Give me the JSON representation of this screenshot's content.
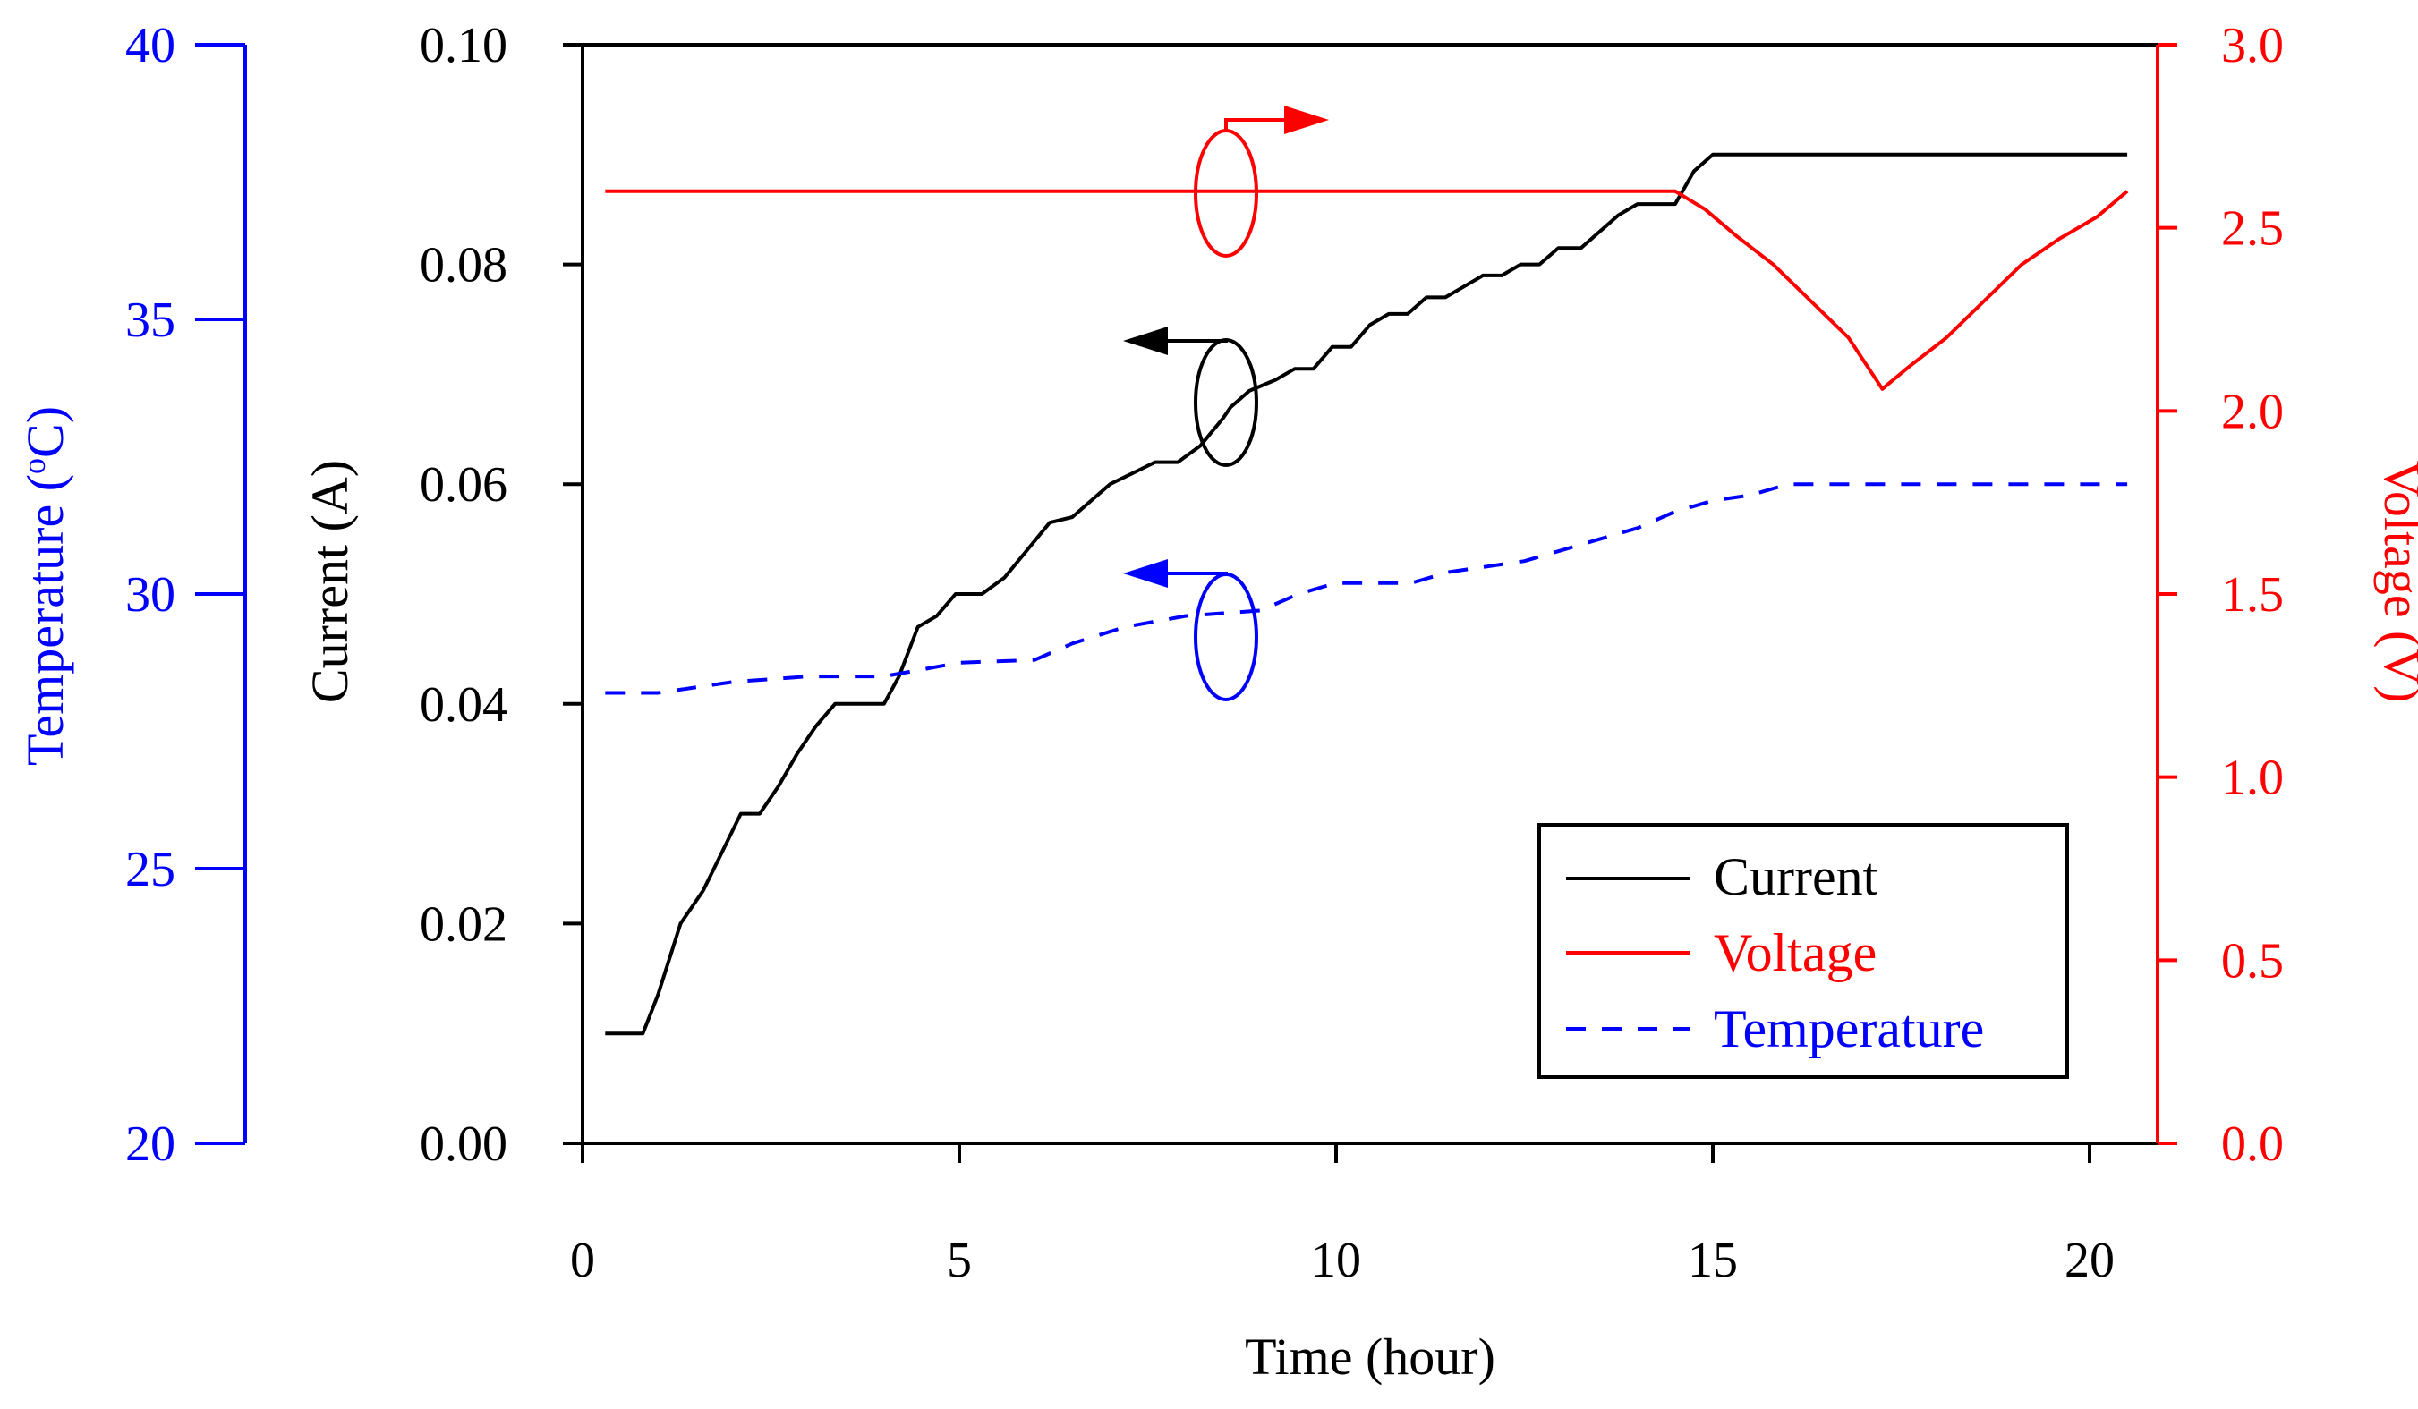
{
  "chart_data": {
    "type": "line",
    "x_axis": {
      "label": "Time (hour)",
      "range": [
        0,
        21
      ],
      "ticks": [
        0,
        5,
        10,
        15,
        20
      ],
      "tick_labels": [
        "0",
        "5",
        "10",
        "15",
        "20"
      ]
    },
    "y_axes": {
      "current": {
        "label": "Current (A)",
        "side": "left-inner",
        "range": [
          0,
          0.1
        ],
        "ticks": [
          0,
          0.02,
          0.04,
          0.06,
          0.08,
          0.1
        ],
        "tick_labels": [
          "0.00",
          "0.02",
          "0.04",
          "0.06",
          "0.08",
          "0.10"
        ],
        "color": "#000000"
      },
      "temperature": {
        "label_main": "Temperature (",
        "label_sup": "o",
        "label_end": "C)",
        "side": "left-outer",
        "range": [
          20,
          40
        ],
        "ticks": [
          20,
          25,
          30,
          35,
          40
        ],
        "tick_labels": [
          "20",
          "25",
          "30",
          "35",
          "40"
        ],
        "color": "#0000ff"
      },
      "voltage": {
        "label": "Voltage (V)",
        "side": "right",
        "range": [
          0,
          3
        ],
        "ticks": [
          0,
          0.5,
          1,
          1.5,
          2,
          2.5,
          3
        ],
        "tick_labels": [
          "0.0",
          "0.5",
          "1.0",
          "1.5",
          "2.0",
          "2.5",
          "3.0"
        ],
        "color": "#ff0000"
      }
    },
    "series": [
      {
        "name": "Current",
        "axis": "current",
        "color": "#000000",
        "dash": "solid",
        "points": [
          [
            0.3,
            0.01
          ],
          [
            0.8,
            0.01
          ],
          [
            1.0,
            0.0135
          ],
          [
            1.3,
            0.02
          ],
          [
            1.6,
            0.023
          ],
          [
            1.85,
            0.0265
          ],
          [
            2.1,
            0.03
          ],
          [
            2.35,
            0.03
          ],
          [
            2.6,
            0.0325
          ],
          [
            2.85,
            0.0355
          ],
          [
            3.1,
            0.038
          ],
          [
            3.35,
            0.04
          ],
          [
            4.0,
            0.04
          ],
          [
            4.2,
            0.0425
          ],
          [
            4.45,
            0.047
          ],
          [
            4.7,
            0.048
          ],
          [
            4.95,
            0.05
          ],
          [
            5.3,
            0.05
          ],
          [
            5.6,
            0.0515
          ],
          [
            5.9,
            0.054
          ],
          [
            6.2,
            0.0565
          ],
          [
            6.5,
            0.057
          ],
          [
            6.75,
            0.0585
          ],
          [
            7.0,
            0.06
          ],
          [
            7.3,
            0.061
          ],
          [
            7.6,
            0.062
          ],
          [
            7.9,
            0.062
          ],
          [
            8.2,
            0.0635
          ],
          [
            8.5,
            0.066
          ],
          [
            8.6,
            0.067
          ],
          [
            8.85,
            0.0685
          ],
          [
            9.2,
            0.0695
          ],
          [
            9.45,
            0.0705
          ],
          [
            9.7,
            0.0705
          ],
          [
            9.95,
            0.0725
          ],
          [
            10.2,
            0.0725
          ],
          [
            10.45,
            0.0745
          ],
          [
            10.7,
            0.0755
          ],
          [
            10.95,
            0.0755
          ],
          [
            11.2,
            0.077
          ],
          [
            11.45,
            0.077
          ],
          [
            11.7,
            0.078
          ],
          [
            11.95,
            0.079
          ],
          [
            12.2,
            0.079
          ],
          [
            12.45,
            0.08
          ],
          [
            12.7,
            0.08
          ],
          [
            12.95,
            0.0815
          ],
          [
            13.25,
            0.0815
          ],
          [
            13.5,
            0.083
          ],
          [
            13.75,
            0.0845
          ],
          [
            14.0,
            0.0855
          ],
          [
            14.5,
            0.0855
          ],
          [
            14.75,
            0.0885
          ],
          [
            15.0,
            0.09
          ],
          [
            20.5,
            0.09
          ]
        ]
      },
      {
        "name": "Voltage",
        "axis": "voltage",
        "color": "#ff0000",
        "dash": "solid",
        "points": [
          [
            0.3,
            2.6
          ],
          [
            14.5,
            2.6
          ],
          [
            14.9,
            2.55
          ],
          [
            15.3,
            2.48
          ],
          [
            15.8,
            2.4
          ],
          [
            16.3,
            2.3
          ],
          [
            16.8,
            2.2
          ],
          [
            17.25,
            2.06
          ],
          [
            17.6,
            2.12
          ],
          [
            18.1,
            2.2
          ],
          [
            18.6,
            2.3
          ],
          [
            19.1,
            2.4
          ],
          [
            19.6,
            2.47
          ],
          [
            20.1,
            2.53
          ],
          [
            20.5,
            2.6
          ]
        ]
      },
      {
        "name": "Temperature",
        "axis": "temperature",
        "color": "#0000ff",
        "dash": "dashed",
        "points": [
          [
            0.3,
            28.2
          ],
          [
            1.0,
            28.2
          ],
          [
            2.0,
            28.4
          ],
          [
            3.0,
            28.5
          ],
          [
            4.0,
            28.5
          ],
          [
            5.0,
            28.75
          ],
          [
            6.0,
            28.8
          ],
          [
            6.5,
            29.1
          ],
          [
            7.2,
            29.4
          ],
          [
            8.0,
            29.6
          ],
          [
            9.0,
            29.7
          ],
          [
            9.5,
            30.0
          ],
          [
            10.0,
            30.2
          ],
          [
            11.0,
            30.2
          ],
          [
            11.5,
            30.4
          ],
          [
            12.5,
            30.6
          ],
          [
            13.0,
            30.8
          ],
          [
            13.5,
            31.0
          ],
          [
            14.0,
            31.2
          ],
          [
            14.5,
            31.5
          ],
          [
            15.0,
            31.7
          ],
          [
            15.5,
            31.8
          ],
          [
            16.0,
            32.0
          ],
          [
            17.0,
            32.0
          ],
          [
            20.5,
            32.0
          ]
        ]
      }
    ],
    "legend": {
      "position": "bottom-right",
      "entries": [
        {
          "label": "Current",
          "color": "#000000",
          "dash": "solid"
        },
        {
          "label": "Voltage",
          "color": "#ff0000",
          "dash": "solid"
        },
        {
          "label": "Temperature",
          "color": "#0000ff",
          "dash": "dashed"
        }
      ]
    },
    "annotations": [
      {
        "series": "Voltage",
        "pointer": "right",
        "color": "#ff0000"
      },
      {
        "series": "Current",
        "pointer": "left",
        "color": "#000000"
      },
      {
        "series": "Temperature",
        "pointer": "left",
        "color": "#0000ff"
      }
    ]
  }
}
